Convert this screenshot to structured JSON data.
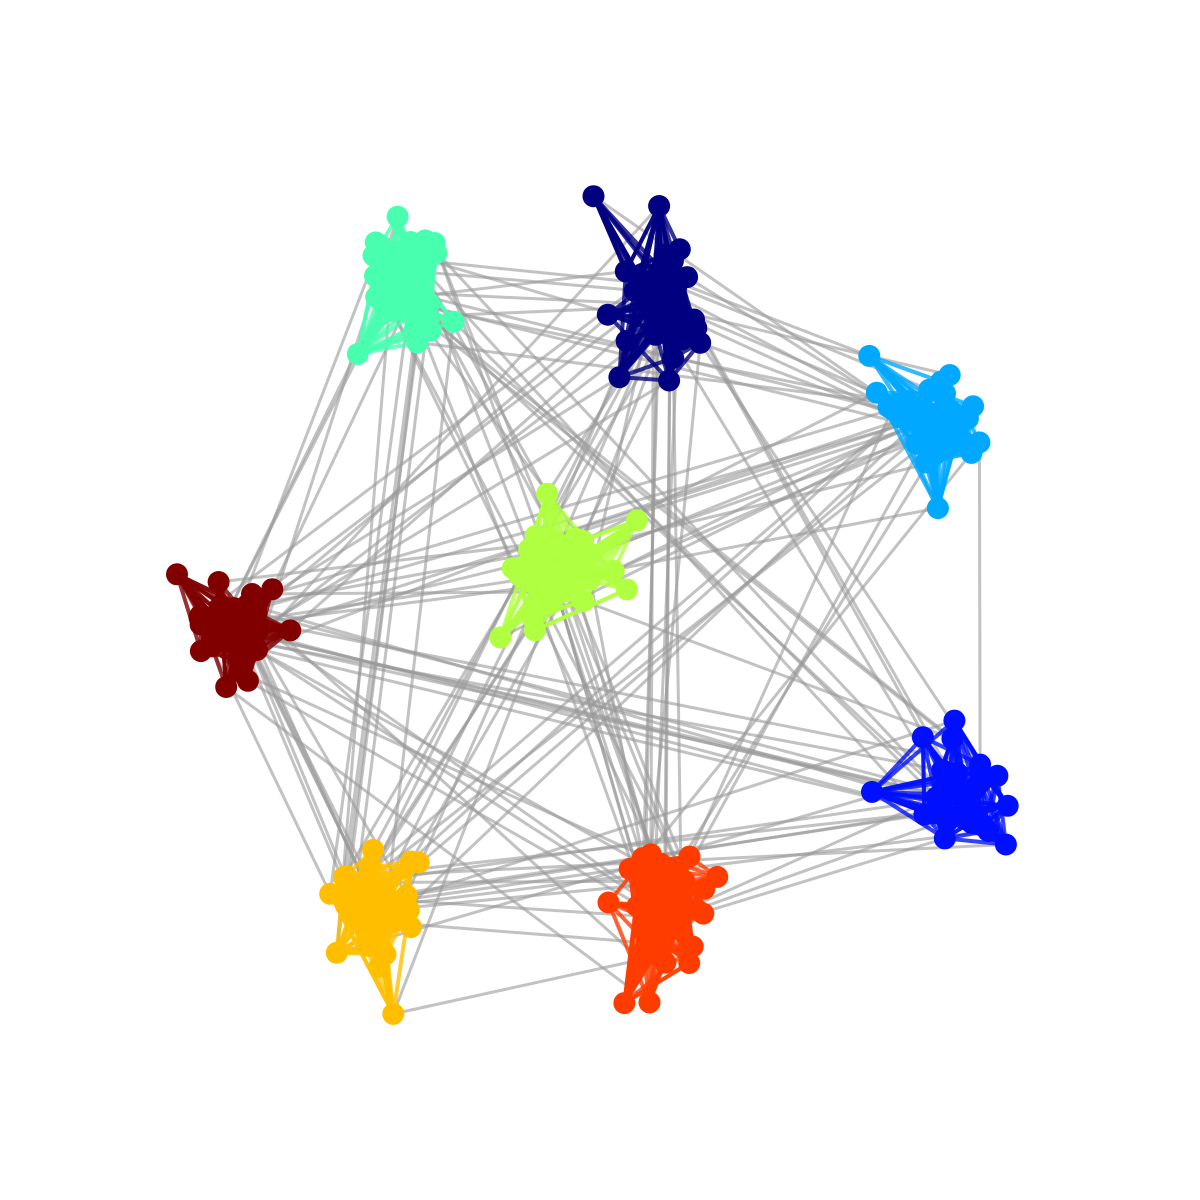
{
  "graph": {
    "inter_edge_color": "#9a9a9a",
    "communities": [
      {
        "id": "navy",
        "color": "#000080",
        "nodes": 44
      },
      {
        "id": "aquamarine",
        "color": "#48ffb0",
        "nodes": 40
      },
      {
        "id": "sky-blue",
        "color": "#00a8ff",
        "nodes": 40
      },
      {
        "id": "lime",
        "color": "#b0ff40",
        "nodes": 44
      },
      {
        "id": "dark-red",
        "color": "#800000",
        "nodes": 40
      },
      {
        "id": "blue",
        "color": "#0010ff",
        "nodes": 32
      },
      {
        "id": "amber",
        "color": "#ffbf00",
        "nodes": 40
      },
      {
        "id": "orange-red",
        "color": "#ff3c00",
        "nodes": 46
      }
    ]
  }
}
